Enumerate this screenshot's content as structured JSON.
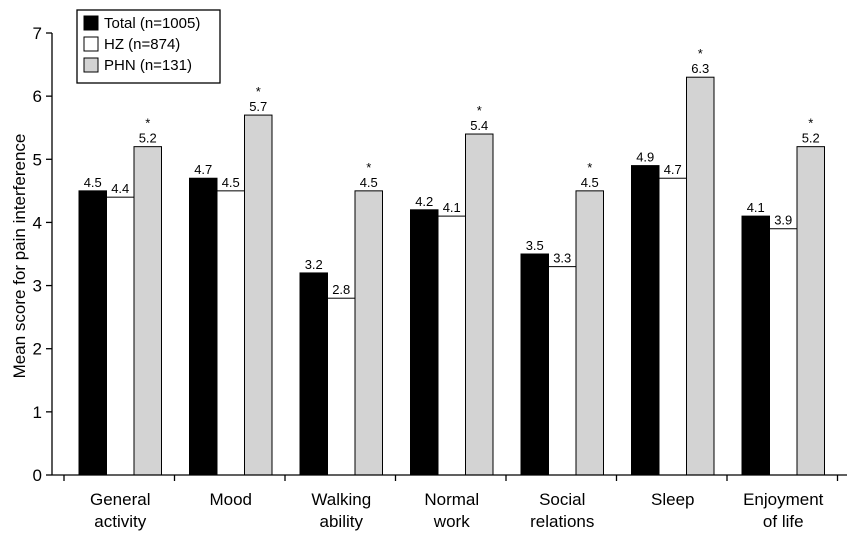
{
  "chart_data": {
    "type": "bar",
    "ylabel": "Mean score for pain interference",
    "ylim": [
      0,
      7
    ],
    "yticks": [
      0,
      1,
      2,
      3,
      4,
      5,
      6,
      7
    ],
    "grid": false,
    "legend_position": "top-left",
    "categories": [
      [
        "General",
        "activity"
      ],
      [
        "Mood"
      ],
      [
        "Walking",
        "ability"
      ],
      [
        "Normal",
        "work"
      ],
      [
        "Social",
        "relations"
      ],
      [
        "Sleep"
      ],
      [
        "Enjoyment",
        "of life"
      ]
    ],
    "series": [
      {
        "name": "Total (n=1005)",
        "color": "#000000",
        "values": [
          4.5,
          4.7,
          3.2,
          4.2,
          3.5,
          4.9,
          4.1
        ]
      },
      {
        "name": "HZ (n=874)",
        "color": "#ffffff",
        "values": [
          4.4,
          4.5,
          2.8,
          4.1,
          3.3,
          4.7,
          3.9
        ]
      },
      {
        "name": "PHN (n=131)",
        "color": "#d3d3d3",
        "values": [
          5.2,
          5.7,
          4.5,
          5.4,
          4.5,
          6.3,
          5.2
        ]
      }
    ],
    "significance_marker": "*",
    "significant_series": "PHN (n=131)"
  }
}
